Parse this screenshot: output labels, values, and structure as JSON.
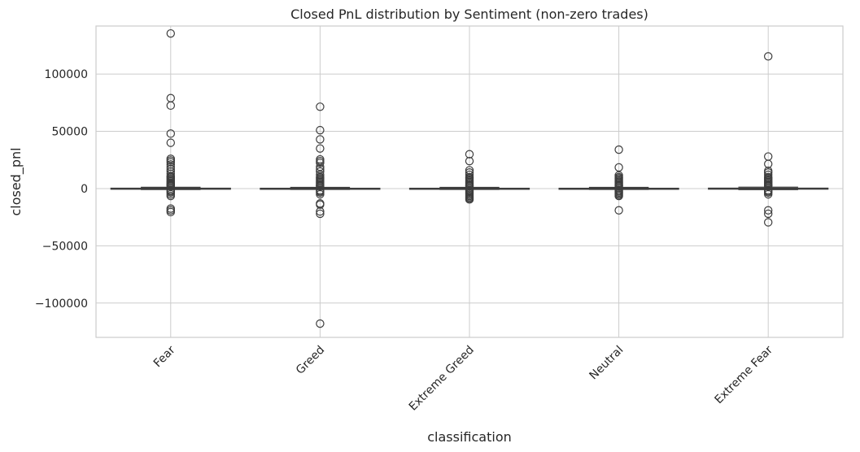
{
  "chart_data": {
    "type": "box",
    "title": "Closed PnL distribution by Sentiment (non-zero trades)",
    "xlabel": "classification",
    "ylabel": "closed_pnl",
    "ylim": [
      -130000,
      142000
    ],
    "y_ticks": [
      100000,
      50000,
      0,
      -50000,
      -100000
    ],
    "y_tick_labels": [
      "100000",
      "50000",
      "0",
      "−50000",
      "−100000"
    ],
    "grid": true,
    "colors": {
      "box_edge": "#3d3d3d",
      "grid": "#cccccc",
      "spine": "#cccccc"
    },
    "categories": [
      "Fear",
      "Greed",
      "Extreme Greed",
      "Neutral",
      "Extreme Fear"
    ],
    "boxes": [
      {
        "category": "Fear",
        "q1": -50,
        "median": 0,
        "q3": 300,
        "whisker_low": -800,
        "whisker_high": 1100,
        "outliers": [
          135500,
          79000,
          72500,
          48000,
          40000,
          26000,
          24500,
          23000,
          21000,
          19000,
          17000,
          15000,
          13000,
          11000,
          10000,
          9000,
          8000,
          7000,
          6000,
          5000,
          4000,
          3500,
          3000,
          2500,
          2000,
          -1500,
          -2500,
          -3500,
          -5000,
          -6500,
          -17500,
          -19000,
          -20500
        ]
      },
      {
        "category": "Greed",
        "q1": -40,
        "median": 0,
        "q3": 250,
        "whisker_low": -700,
        "whisker_high": 1000,
        "outliers": [
          71500,
          51000,
          43000,
          35000,
          25500,
          24000,
          22500,
          19000,
          17000,
          15000,
          12000,
          10000,
          9000,
          8000,
          7000,
          6000,
          5000,
          4000,
          3000,
          2500,
          2000,
          -1500,
          -2500,
          -3500,
          -5000,
          -13000,
          -14000,
          -20000,
          -22000,
          -118000
        ]
      },
      {
        "category": "Extreme Greed",
        "q1": -40,
        "median": 0,
        "q3": 250,
        "whisker_low": -700,
        "whisker_high": 1000,
        "outliers": [
          30000,
          24000,
          16000,
          14000,
          12000,
          10000,
          9000,
          8000,
          7000,
          6000,
          5000,
          4000,
          3000,
          2500,
          2000,
          -1500,
          -2500,
          -3500,
          -4500,
          -5500,
          -6500,
          -7500,
          -8500,
          -9500
        ]
      },
      {
        "category": "Neutral",
        "q1": -40,
        "median": 0,
        "q3": 250,
        "whisker_low": -700,
        "whisker_high": 1000,
        "outliers": [
          34000,
          18500,
          11500,
          10000,
          9000,
          8000,
          7000,
          6000,
          5000,
          4000,
          3000,
          2500,
          2000,
          -1500,
          -2500,
          -3500,
          -4500,
          -5500,
          -6500,
          -19000
        ]
      },
      {
        "category": "Extreme Fear",
        "q1": -60,
        "median": 0,
        "q3": 350,
        "whisker_low": -900,
        "whisker_high": 1200,
        "outliers": [
          115500,
          28000,
          21500,
          15500,
          14000,
          12000,
          10000,
          9000,
          8000,
          7000,
          6000,
          5000,
          4000,
          3000,
          2500,
          2000,
          -1500,
          -2500,
          -3500,
          -5000,
          -19000,
          -22000,
          -29500
        ]
      }
    ]
  }
}
